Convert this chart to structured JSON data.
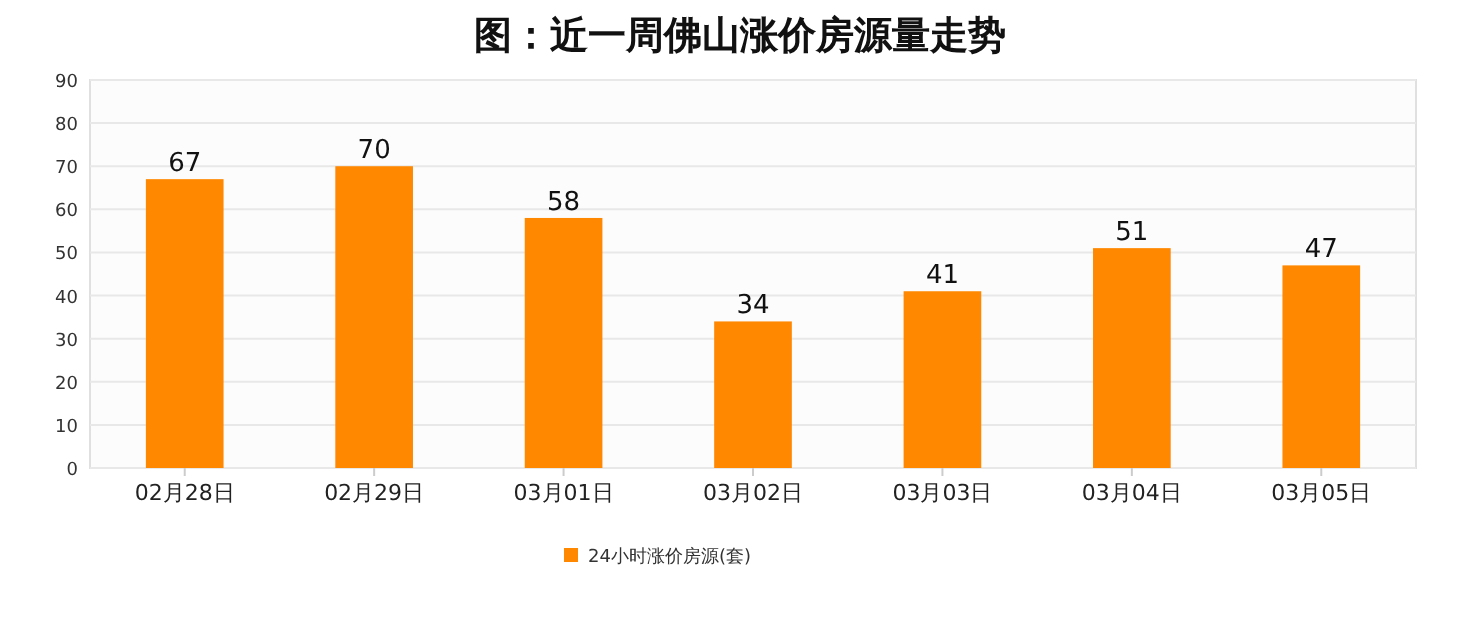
{
  "chart_data": {
    "type": "bar",
    "title": "图：近一周佛山涨价房源量走势",
    "categories": [
      "02月28日",
      "02月29日",
      "03月01日",
      "03月02日",
      "03月03日",
      "03月04日",
      "03月05日"
    ],
    "series": [
      {
        "name": "24小时涨价房源(套)",
        "color": "#ff8800",
        "values": [
          67,
          70,
          58,
          34,
          41,
          51,
          47
        ]
      }
    ],
    "ylim": [
      0,
      90
    ],
    "yticks": [
      0,
      10,
      20,
      30,
      40,
      50,
      60,
      70,
      80,
      90
    ],
    "data_labels": true,
    "grid": "y",
    "legend": "bottom"
  }
}
